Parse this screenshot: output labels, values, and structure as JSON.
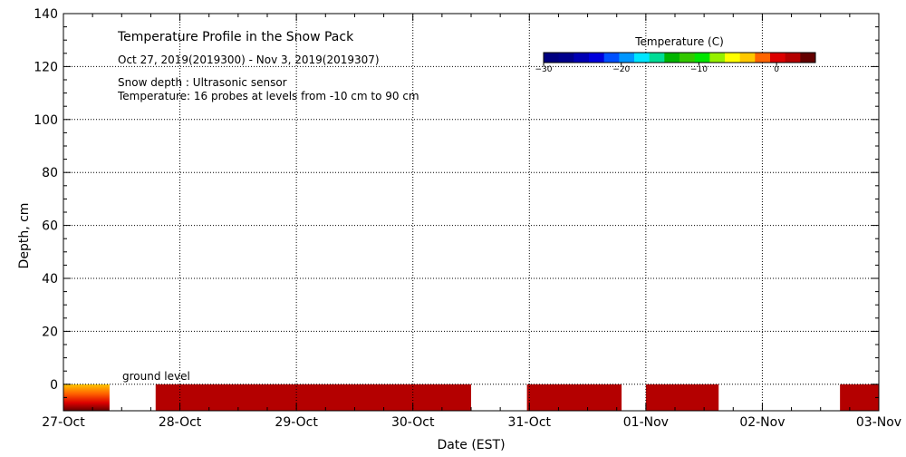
{
  "chart_data": {
    "type": "heatmap",
    "title": "Temperature Profile in the Snow Pack",
    "subtitle": "Oct 27, 2019(2019300) - Nov  3, 2019(2019307)",
    "notes": [
      "Snow depth : Ultrasonic sensor",
      "Temperature: 16 probes at levels from -10 cm to 90 cm"
    ],
    "ground_label": "ground level",
    "xlabel": "Date (EST)",
    "ylabel": "Depth, cm",
    "x_categories": [
      "27-Oct",
      "28-Oct",
      "29-Oct",
      "30-Oct",
      "31-Oct",
      "01-Nov",
      "02-Nov",
      "03-Nov"
    ],
    "xlim": [
      "2019-10-27",
      "2019-11-03"
    ],
    "ylim": [
      -10,
      140
    ],
    "y_ticks": [
      0,
      20,
      40,
      60,
      80,
      100,
      120,
      140
    ],
    "grid": true,
    "colorbar": {
      "title": "Temperature (C)",
      "range": [
        -30,
        5
      ],
      "ticks": [
        -30,
        -20,
        -10,
        0
      ],
      "colors": [
        "#000080",
        "#00008c",
        "#0000b4",
        "#0000dc",
        "#0050ff",
        "#0096ff",
        "#00e6ff",
        "#00dc96",
        "#00b400",
        "#32c800",
        "#00e600",
        "#96f000",
        "#ffff00",
        "#ffc800",
        "#ff6400",
        "#dc0000",
        "#b40000",
        "#640000"
      ]
    },
    "data_segments": [
      {
        "start": "2019-10-27 00:00",
        "end": "2019-10-27 09:30",
        "depth_top": 0,
        "depth_bottom": -10,
        "temperature": "warm-gradient"
      },
      {
        "start": "2019-10-27 19:00",
        "end": "2019-10-30 12:00",
        "depth_top": 0,
        "depth_bottom": -10,
        "temperature": 3
      },
      {
        "start": "2019-10-30 23:30",
        "end": "2019-10-31 19:00",
        "depth_top": 0,
        "depth_bottom": -10,
        "temperature": 3
      },
      {
        "start": "2019-11-01 00:00",
        "end": "2019-11-01 15:00",
        "depth_top": 0,
        "depth_bottom": -10,
        "temperature": 3
      },
      {
        "start": "2019-11-02 16:00",
        "end": "2019-11-03 00:00",
        "depth_top": 0,
        "depth_bottom": -10,
        "temperature": 3
      }
    ]
  }
}
